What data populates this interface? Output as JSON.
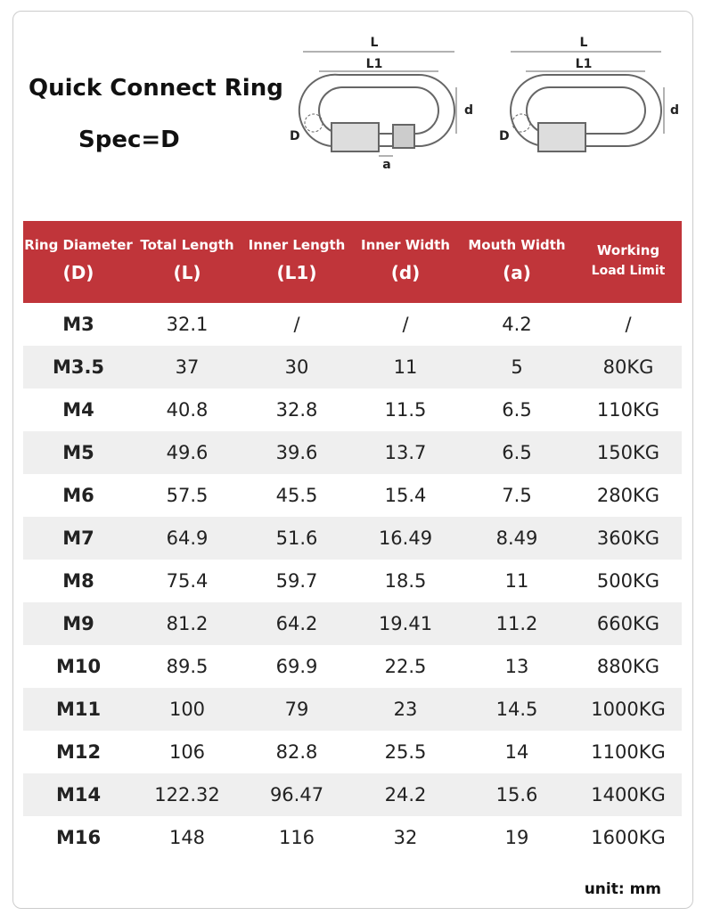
{
  "header": {
    "title": "Quick Connect Ring",
    "subtitle": "Spec=D"
  },
  "diagrams": [
    {
      "length": "L",
      "inner_length": "L1",
      "inner_width": "d",
      "diameter": "D",
      "mouth": "a"
    },
    {
      "length": "L",
      "inner_length": "L1",
      "inner_width": "d",
      "diameter": "D"
    }
  ],
  "table": {
    "columns": [
      [
        "Ring Diameter",
        "(D)"
      ],
      [
        "Total Length",
        "(L)"
      ],
      [
        "Inner Length",
        "(L1)"
      ],
      [
        "Inner Width",
        "(d)"
      ],
      [
        "Mouth Width",
        "(a)"
      ],
      [
        "Working",
        "Load Limit"
      ]
    ],
    "rows": [
      [
        "M3",
        "32.1",
        "/",
        "/",
        "4.2",
        "/"
      ],
      [
        "M3.5",
        "37",
        "30",
        "11",
        "5",
        "80KG"
      ],
      [
        "M4",
        "40.8",
        "32.8",
        "11.5",
        "6.5",
        "110KG"
      ],
      [
        "M5",
        "49.6",
        "39.6",
        "13.7",
        "6.5",
        "150KG"
      ],
      [
        "M6",
        "57.5",
        "45.5",
        "15.4",
        "7.5",
        "280KG"
      ],
      [
        "M7",
        "64.9",
        "51.6",
        "16.49",
        "8.49",
        "360KG"
      ],
      [
        "M8",
        "75.4",
        "59.7",
        "18.5",
        "11",
        "500KG"
      ],
      [
        "M9",
        "81.2",
        "64.2",
        "19.41",
        "11.2",
        "660KG"
      ],
      [
        "M10",
        "89.5",
        "69.9",
        "22.5",
        "13",
        "880KG"
      ],
      [
        "M11",
        "100",
        "79",
        "23",
        "14.5",
        "1000KG"
      ],
      [
        "M12",
        "106",
        "82.8",
        "25.5",
        "14",
        "1100KG"
      ],
      [
        "M14",
        "122.32",
        "96.47",
        "24.2",
        "15.6",
        "1400KG"
      ],
      [
        "M16",
        "148",
        "116",
        "32",
        "19",
        "1600KG"
      ]
    ]
  },
  "footer": {
    "unit": "unit: mm"
  }
}
